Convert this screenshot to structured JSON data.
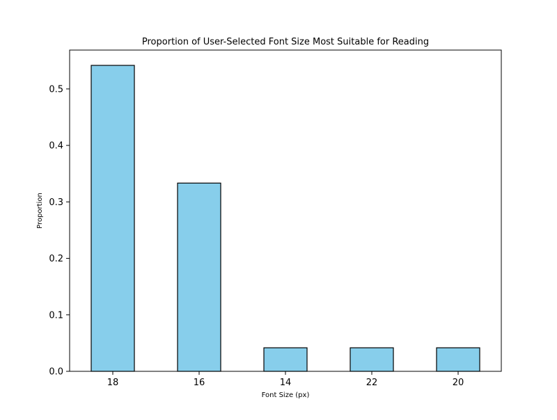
{
  "chart_data": {
    "type": "bar",
    "title": "Proportion of User-Selected Font Size Most Suitable for Reading",
    "xlabel": "Font Size (px)",
    "ylabel": "Proportion",
    "categories": [
      "18",
      "16",
      "14",
      "22",
      "20"
    ],
    "values": [
      0.5417,
      0.3333,
      0.0417,
      0.0417,
      0.0417
    ],
    "ylim": [
      0,
      0.5688
    ],
    "yticks": [
      0.0,
      0.1,
      0.2,
      0.3,
      0.4,
      0.5
    ],
    "ytick_labels": [
      "0.0",
      "0.1",
      "0.2",
      "0.3",
      "0.4",
      "0.5"
    ],
    "bar_color": "#87CEEB",
    "bar_edge_color": "#000000",
    "grid": false,
    "legend": "none"
  }
}
